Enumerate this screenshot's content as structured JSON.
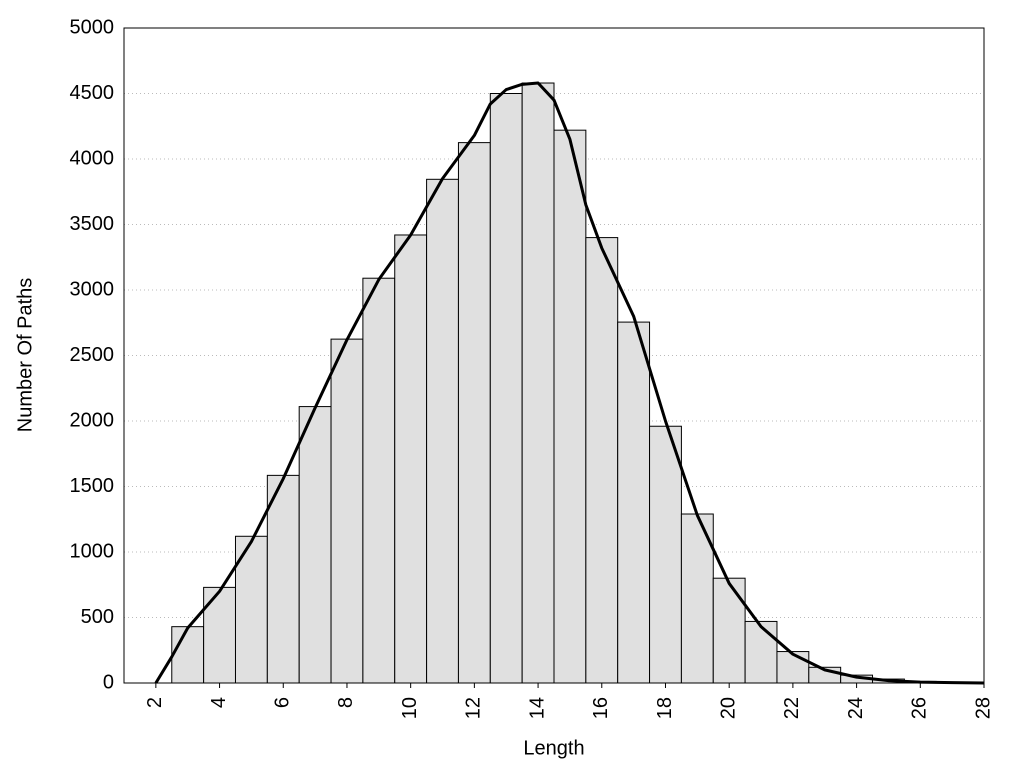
{
  "chart_data": {
    "type": "histogram",
    "xlabel": "Length",
    "ylabel": "Number Of Paths",
    "bins": [
      2.5,
      3.5,
      4.5,
      5.5,
      6.5,
      7.5,
      8.5,
      9.5,
      10.5,
      11.5,
      12.5,
      13.5,
      14.5,
      15.5,
      16.5,
      17.5,
      18.5,
      19.5,
      20.5,
      21.5,
      22.5,
      23.5,
      24.5,
      25.5,
      26.5,
      27.5
    ],
    "values": [
      430,
      730,
      1120,
      1585,
      2110,
      2625,
      3090,
      3420,
      3845,
      4125,
      4500,
      4580,
      4220,
      3400,
      2755,
      1960,
      1290,
      800,
      470,
      240,
      120,
      60,
      30,
      12,
      6
    ],
    "color": "#e0e0e0",
    "line": {
      "color": "#000000",
      "x": [
        2,
        2.5,
        3,
        3.5,
        4,
        5,
        6,
        7,
        8,
        9,
        10,
        11,
        12,
        12.5,
        13,
        13.5,
        14,
        14.5,
        15,
        15.5,
        16,
        17,
        18,
        19,
        20,
        21,
        22,
        23,
        24,
        25,
        26,
        27,
        28
      ],
      "values": [
        0,
        200,
        420,
        560,
        700,
        1080,
        1560,
        2100,
        2620,
        3080,
        3420,
        3850,
        4180,
        4420,
        4530,
        4570,
        4580,
        4450,
        4150,
        3650,
        3320,
        2800,
        2000,
        1280,
        760,
        430,
        220,
        100,
        45,
        18,
        7,
        3,
        0
      ]
    },
    "xlim": [
      1,
      28
    ],
    "ylim": [
      0,
      5000
    ],
    "xticks": [
      2,
      4,
      6,
      8,
      10,
      12,
      14,
      16,
      18,
      20,
      22,
      24,
      26,
      28
    ],
    "yticks": [
      0,
      500,
      1000,
      1500,
      2000,
      2500,
      3000,
      3500,
      4000,
      4500,
      5000
    ],
    "grid": true
  }
}
